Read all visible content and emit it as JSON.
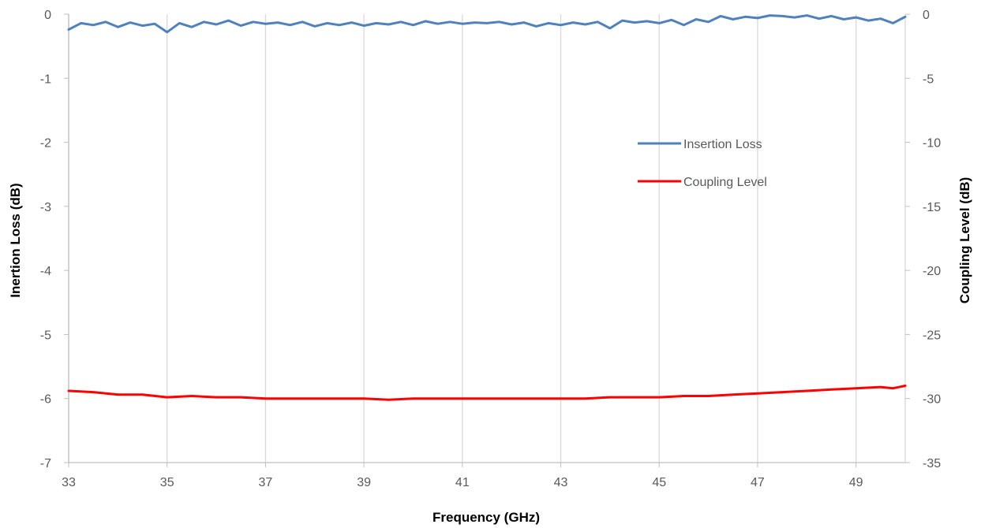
{
  "chart_data": {
    "type": "line",
    "title": "",
    "xlabel": "Frequency (GHz)",
    "ylabel": "Inertion Loss (dB)",
    "y2label": "Coupling Level (dB)",
    "xlim": [
      33,
      50
    ],
    "ylim": [
      -7,
      0
    ],
    "y2lim": [
      -35,
      0
    ],
    "x_ticks": [
      "33",
      "35",
      "37",
      "39",
      "41",
      "43",
      "45",
      "47",
      "49"
    ],
    "y_ticks": [
      "0",
      "-1",
      "-2",
      "-3",
      "-4",
      "-5",
      "-6",
      "-7"
    ],
    "y2_ticks": [
      "0",
      "-5",
      "-10",
      "-15",
      "-20",
      "-25",
      "-30",
      "-35"
    ],
    "grid": "vertical",
    "legend_position": "right",
    "series": [
      {
        "name": "Insertion Loss",
        "axis": "left",
        "color": "#4f81bd",
        "x": [
          33.0,
          33.25,
          33.5,
          33.75,
          34.0,
          34.25,
          34.5,
          34.75,
          35.0,
          35.25,
          35.5,
          35.75,
          36.0,
          36.25,
          36.5,
          36.75,
          37.0,
          37.25,
          37.5,
          37.75,
          38.0,
          38.25,
          38.5,
          38.75,
          39.0,
          39.25,
          39.5,
          39.75,
          40.0,
          40.25,
          40.5,
          40.75,
          41.0,
          41.25,
          41.5,
          41.75,
          42.0,
          42.25,
          42.5,
          42.75,
          43.0,
          43.25,
          43.5,
          43.75,
          44.0,
          44.25,
          44.5,
          44.75,
          45.0,
          45.25,
          45.5,
          45.75,
          46.0,
          46.25,
          46.5,
          46.75,
          47.0,
          47.25,
          47.5,
          47.75,
          48.0,
          48.25,
          48.5,
          48.75,
          49.0,
          49.25,
          49.5,
          49.75,
          50.0
        ],
        "values": [
          -0.24,
          -0.14,
          -0.17,
          -0.12,
          -0.2,
          -0.13,
          -0.18,
          -0.15,
          -0.28,
          -0.14,
          -0.2,
          -0.12,
          -0.16,
          -0.1,
          -0.18,
          -0.12,
          -0.15,
          -0.13,
          -0.17,
          -0.12,
          -0.19,
          -0.14,
          -0.17,
          -0.13,
          -0.18,
          -0.14,
          -0.16,
          -0.12,
          -0.17,
          -0.11,
          -0.15,
          -0.12,
          -0.15,
          -0.13,
          -0.14,
          -0.12,
          -0.16,
          -0.13,
          -0.19,
          -0.14,
          -0.17,
          -0.13,
          -0.16,
          -0.12,
          -0.22,
          -0.1,
          -0.13,
          -0.11,
          -0.14,
          -0.09,
          -0.17,
          -0.08,
          -0.12,
          -0.03,
          -0.08,
          -0.04,
          -0.06,
          -0.02,
          -0.03,
          -0.05,
          -0.02,
          -0.07,
          -0.03,
          -0.08,
          -0.05,
          -0.1,
          -0.07,
          -0.14,
          -0.04
        ]
      },
      {
        "name": "Coupling Level",
        "axis": "right",
        "color": "#ff0000",
        "x": [
          33.0,
          33.5,
          34.0,
          34.5,
          35.0,
          35.5,
          36.0,
          36.5,
          37.0,
          37.5,
          38.0,
          38.5,
          39.0,
          39.5,
          40.0,
          40.5,
          41.0,
          41.5,
          42.0,
          42.5,
          43.0,
          43.5,
          44.0,
          44.5,
          45.0,
          45.5,
          46.0,
          46.5,
          47.0,
          47.5,
          48.0,
          48.5,
          49.0,
          49.5,
          49.75,
          50.0
        ],
        "values": [
          -29.4,
          -29.5,
          -29.7,
          -29.7,
          -29.9,
          -29.8,
          -29.9,
          -29.9,
          -30.0,
          -30.0,
          -30.0,
          -30.0,
          -30.0,
          -30.1,
          -30.0,
          -30.0,
          -30.0,
          -30.0,
          -30.0,
          -30.0,
          -30.0,
          -30.0,
          -29.9,
          -29.9,
          -29.9,
          -29.8,
          -29.8,
          -29.7,
          -29.6,
          -29.5,
          -29.4,
          -29.3,
          -29.2,
          -29.1,
          -29.2,
          -29.0
        ]
      }
    ]
  }
}
